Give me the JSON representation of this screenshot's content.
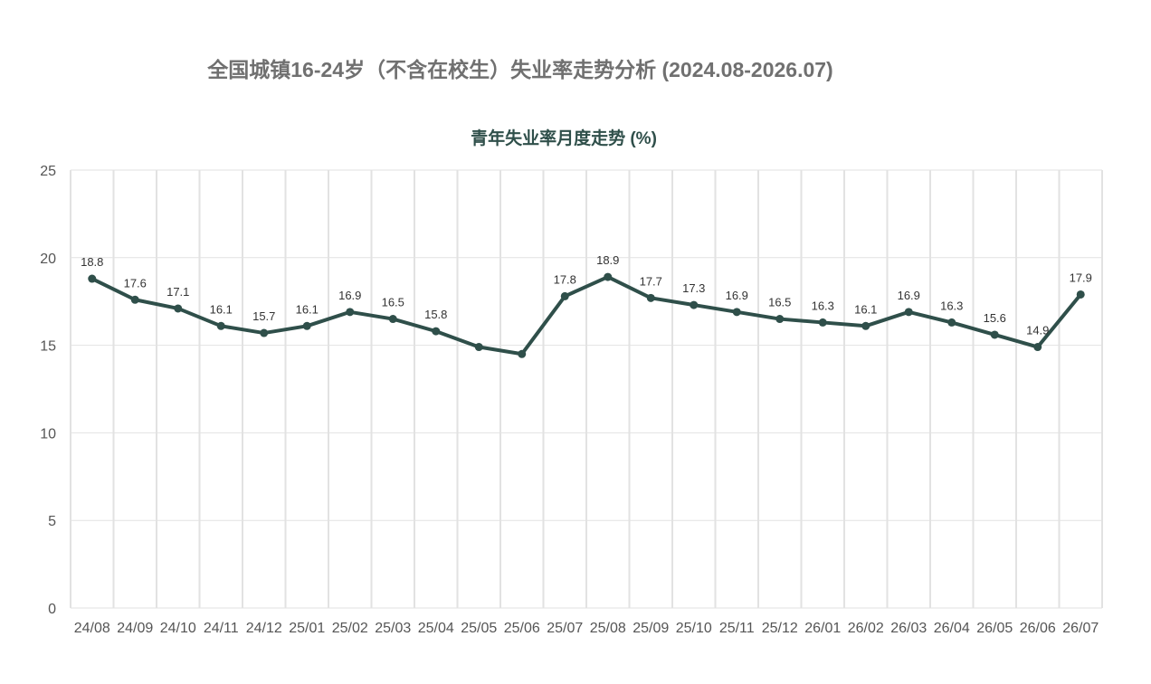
{
  "page": {
    "title": "全国城镇16-24岁（不含在校生）失业率走势分析 (2024.08-2026.07)"
  },
  "colors": {
    "line": "#2f4f4a",
    "grid": "#e2e2e2",
    "page_title": "#707070"
  },
  "chart_data": {
    "type": "line",
    "title": "青年失业率月度走势 (%)",
    "xlabel": "",
    "ylabel": "",
    "ylim": [
      0,
      25
    ],
    "yticks": [
      0,
      5,
      10,
      15,
      20,
      25
    ],
    "grid": true,
    "categories": [
      "24/08",
      "24/09",
      "24/10",
      "24/11",
      "24/12",
      "25/01",
      "25/02",
      "25/03",
      "25/04",
      "25/05",
      "25/06",
      "25/07",
      "25/08",
      "25/09",
      "25/10",
      "25/11",
      "25/12",
      "26/01",
      "26/02",
      "26/03",
      "26/04",
      "26/05",
      "26/06",
      "26/07"
    ],
    "series": [
      {
        "values": [
          18.8,
          17.6,
          17.1,
          16.1,
          15.7,
          16.1,
          16.9,
          16.5,
          15.8,
          14.9,
          14.5,
          17.8,
          18.9,
          17.7,
          17.3,
          16.9,
          16.5,
          16.3,
          16.1,
          16.9,
          16.3,
          15.6,
          14.9,
          17.9
        ],
        "labels": [
          "18.8",
          "17.6",
          "17.1",
          "16.1",
          "15.7",
          "16.1",
          "16.9",
          "16.5",
          "15.8",
          "",
          "",
          "17.8",
          "18.9",
          "17.7",
          "17.3",
          "16.9",
          "16.5",
          "16.3",
          "16.1",
          "16.9",
          "16.3",
          "15.6",
          "14.9",
          "17.9"
        ]
      }
    ]
  }
}
